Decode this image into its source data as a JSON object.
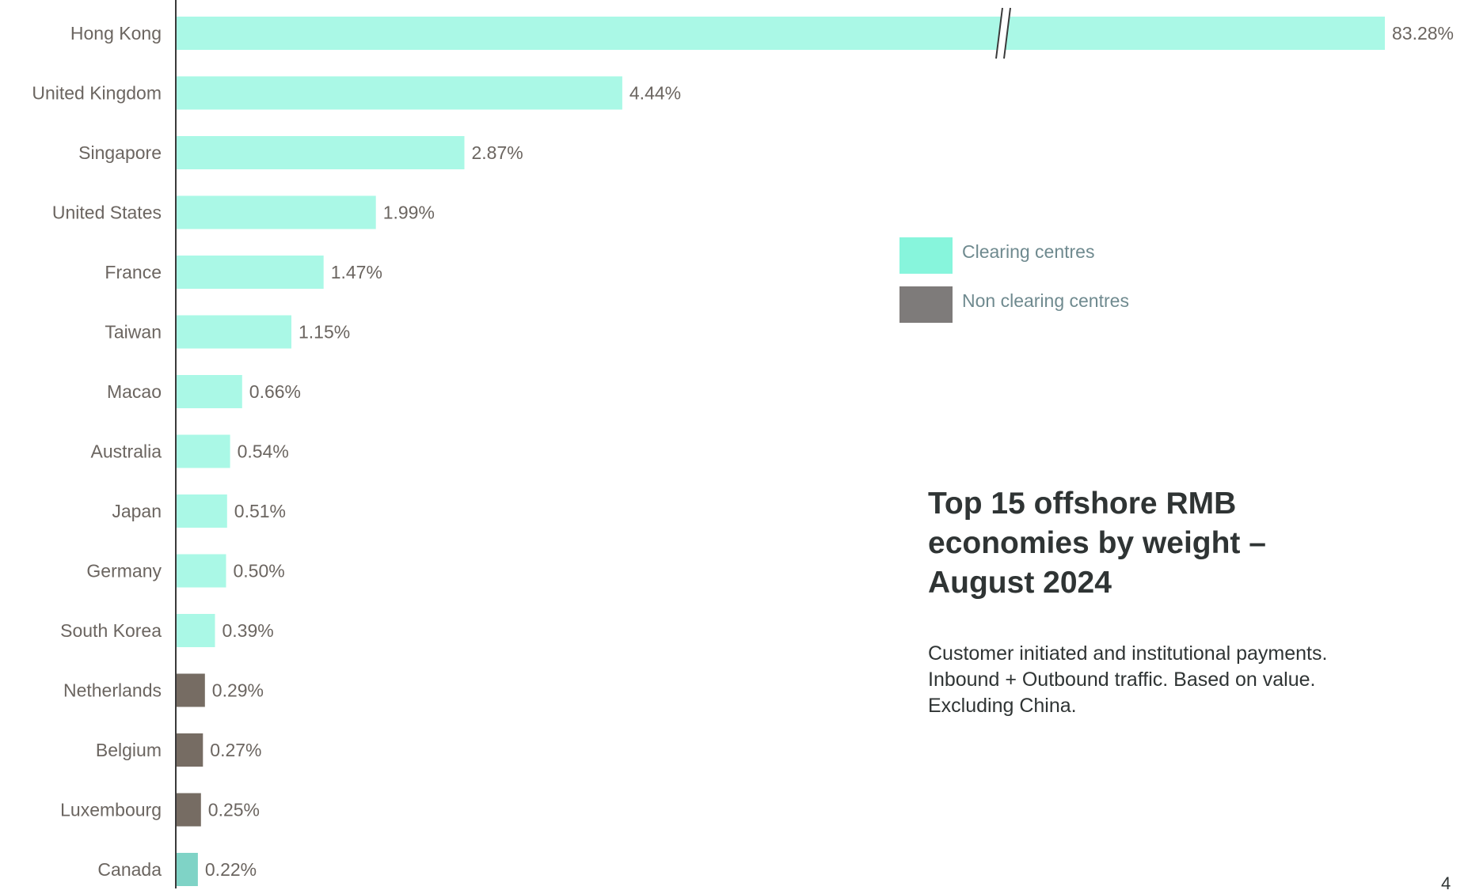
{
  "chart_data": {
    "type": "bar",
    "orientation": "horizontal",
    "title": "Top 15 offshore RMB economies by weight – August 2024",
    "subtitle": "Customer initiated and institutional payments. Inbound + Outbound traffic. Based on value. Excluding China.",
    "xlabel": "",
    "ylabel": "",
    "axis_break": true,
    "categories": [
      "Hong Kong",
      "United Kingdom",
      "Singapore",
      "United States",
      "France",
      "Taiwan",
      "Macao",
      "Australia",
      "Japan",
      "Germany",
      "South Korea",
      "Netherlands",
      "Belgium",
      "Luxembourg",
      "Canada"
    ],
    "values": [
      83.28,
      4.44,
      2.87,
      1.99,
      1.47,
      1.15,
      0.66,
      0.54,
      0.51,
      0.5,
      0.39,
      0.29,
      0.27,
      0.25,
      0.22
    ],
    "value_labels": [
      "83.28%",
      "4.44%",
      "2.87%",
      "1.99%",
      "1.47%",
      "1.15%",
      "0.66%",
      "0.54%",
      "0.51%",
      "0.50%",
      "0.39%",
      "0.29%",
      "0.27%",
      "0.25%",
      "0.22%"
    ],
    "groups": [
      "clearing",
      "clearing",
      "clearing",
      "clearing",
      "clearing",
      "clearing",
      "clearing",
      "clearing",
      "clearing",
      "clearing",
      "clearing",
      "non_clearing",
      "non_clearing",
      "non_clearing",
      "clearing"
    ],
    "legend": [
      {
        "key": "clearing",
        "label": "Clearing centres",
        "color": "#87f5dc"
      },
      {
        "key": "non_clearing",
        "label": "Non clearing centres",
        "color": "#7e7b7a"
      }
    ],
    "bar_colors": {
      "clearing": "#aaf8e6",
      "non_clearing": "#766c63",
      "last": "#7fd3c6"
    },
    "legend_placement": "right",
    "grid": false
  },
  "page": {
    "number": "4"
  }
}
